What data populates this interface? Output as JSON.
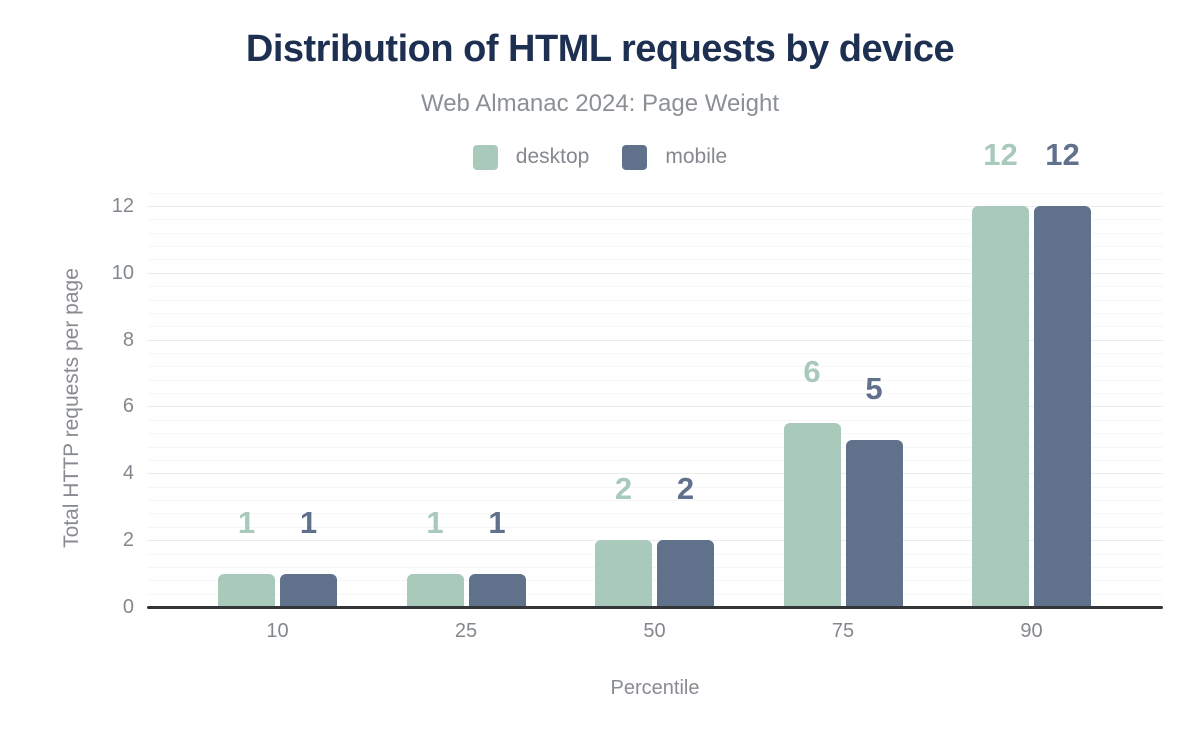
{
  "header": {
    "title": "Distribution of HTML requests by device",
    "subtitle": "Web Almanac 2024: Page Weight"
  },
  "chart_data": {
    "type": "bar",
    "title": "Distribution of HTML requests by device",
    "subtitle": "Web Almanac 2024: Page Weight",
    "categories": [
      "10",
      "25",
      "50",
      "75",
      "90"
    ],
    "series": [
      {
        "name": "desktop",
        "color": "#a9c9ba",
        "values": [
          1,
          1,
          2,
          5.5,
          12
        ],
        "labels": [
          "1",
          "1",
          "2",
          "6",
          "12"
        ]
      },
      {
        "name": "mobile",
        "color": "#60718c",
        "values": [
          1,
          1,
          2,
          5,
          12
        ],
        "labels": [
          "1",
          "1",
          "2",
          "5",
          "12"
        ]
      }
    ],
    "xlabel": "Percentile",
    "ylabel": "Total HTTP requests per page",
    "ylim": [
      0,
      12.5
    ],
    "yticks": [
      0,
      2,
      4,
      6,
      8,
      10,
      12
    ],
    "minor_grid_step": 0.4,
    "grid": "horizontal",
    "legend_position": "top-center"
  },
  "colors": {
    "title": "#1e3052",
    "subtitle": "#8b9096",
    "tick_text": "#83888e",
    "axis_line": "#333639",
    "grid_minor": "#f6f6f6",
    "grid_major": "#ebebeb",
    "background": "#ffffff"
  }
}
